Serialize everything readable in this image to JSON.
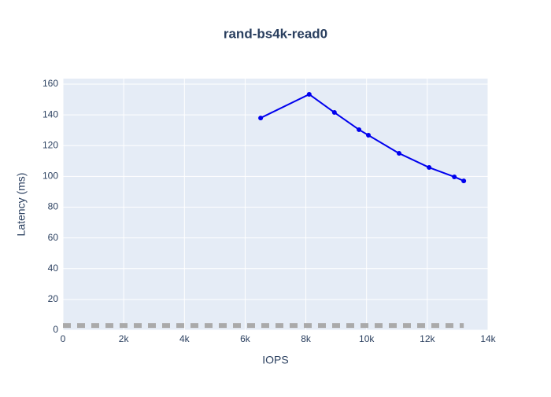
{
  "chart_data": {
    "type": "line",
    "title": "rand-bs4k-read0",
    "x_label": "IOPS",
    "y_label": "Latency (ms)",
    "series": [
      {
        "color": "#0000ee",
        "markers": true,
        "dash": false,
        "x": [
          6510,
          8110,
          8940,
          9750,
          10060,
          11070,
          12060,
          12890,
          13200
        ],
        "values": [
          138,
          153.4,
          141.6,
          130.4,
          126.8,
          115,
          105.8,
          99.7,
          97.1
        ]
      },
      {
        "color": "#aaaaaa",
        "markers": false,
        "dash": true,
        "x": [
          0,
          13200
        ],
        "values": [
          3,
          3
        ]
      }
    ],
    "xlim": [
      0,
      14000
    ],
    "xticks": [
      0,
      {
        "value": 2000,
        "label": "2k"
      },
      {
        "value": 4000,
        "label": "4k"
      },
      {
        "value": 6000,
        "label": "6k"
      },
      {
        "value": 8000,
        "label": "8k"
      },
      {
        "value": 10000,
        "label": "10k"
      },
      {
        "value": 12000,
        "label": "12k"
      },
      {
        "value": 14000,
        "label": "14k"
      }
    ],
    "ylim": [
      0,
      163.6
    ],
    "yticks": [
      0,
      20,
      40,
      60,
      80,
      100,
      120,
      140,
      160
    ],
    "grid": true
  }
}
